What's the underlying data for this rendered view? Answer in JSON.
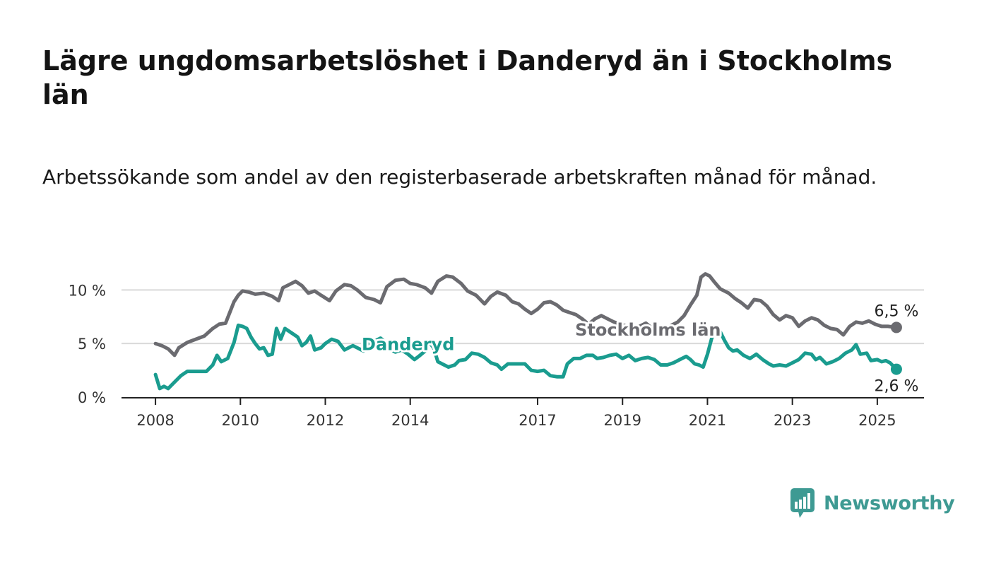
{
  "title": "Lägre ungdomsarbetslöshet i Danderyd än i Stockholms län",
  "subtitle": "Arbetssökande som andel av den registerbaserade arbetskraften månad för månad.",
  "brand": {
    "name": "Newsworthy",
    "color": "#3e9a93",
    "icon": "bar-chart-speech-bubble-icon"
  },
  "chart_data": {
    "type": "line",
    "ylim": [
      0,
      12
    ],
    "yticks": [
      0,
      5,
      10
    ],
    "ytick_labels": [
      "0 %",
      "5 %",
      "10 %"
    ],
    "xticks": [
      2008,
      2010,
      2012,
      2014,
      2017,
      2019,
      2021,
      2023,
      2025
    ],
    "xtick_labels": [
      "2008",
      "2010",
      "2012",
      "2014",
      "2017",
      "2019",
      "2021",
      "2023",
      "2025"
    ],
    "xlim": [
      2007.2,
      2026.1
    ],
    "grid": true,
    "series": [
      {
        "name": "Stockholms län",
        "color": "#6b6b70",
        "end_label": "6,5 %",
        "points": [
          [
            2008.0,
            5.0
          ],
          [
            2008.15,
            4.8
          ],
          [
            2008.3,
            4.5
          ],
          [
            2008.45,
            3.9
          ],
          [
            2008.55,
            4.6
          ],
          [
            2008.75,
            5.1
          ],
          [
            2008.95,
            5.4
          ],
          [
            2009.15,
            5.7
          ],
          [
            2009.35,
            6.4
          ],
          [
            2009.5,
            6.8
          ],
          [
            2009.65,
            6.9
          ],
          [
            2009.75,
            7.9
          ],
          [
            2009.85,
            8.9
          ],
          [
            2009.95,
            9.5
          ],
          [
            2010.05,
            9.9
          ],
          [
            2010.2,
            9.8
          ],
          [
            2010.35,
            9.6
          ],
          [
            2010.55,
            9.7
          ],
          [
            2010.75,
            9.4
          ],
          [
            2010.9,
            9.0
          ],
          [
            2011.0,
            10.2
          ],
          [
            2011.15,
            10.5
          ],
          [
            2011.3,
            10.8
          ],
          [
            2011.45,
            10.4
          ],
          [
            2011.6,
            9.7
          ],
          [
            2011.75,
            9.9
          ],
          [
            2011.9,
            9.5
          ],
          [
            2012.1,
            9.0
          ],
          [
            2012.25,
            9.9
          ],
          [
            2012.45,
            10.5
          ],
          [
            2012.6,
            10.4
          ],
          [
            2012.75,
            10.0
          ],
          [
            2012.95,
            9.3
          ],
          [
            2013.15,
            9.1
          ],
          [
            2013.3,
            8.8
          ],
          [
            2013.45,
            10.3
          ],
          [
            2013.65,
            10.9
          ],
          [
            2013.85,
            11.0
          ],
          [
            2014.0,
            10.6
          ],
          [
            2014.15,
            10.5
          ],
          [
            2014.35,
            10.2
          ],
          [
            2014.5,
            9.7
          ],
          [
            2014.65,
            10.8
          ],
          [
            2014.85,
            11.3
          ],
          [
            2015.0,
            11.2
          ],
          [
            2015.2,
            10.6
          ],
          [
            2015.35,
            9.9
          ],
          [
            2015.55,
            9.5
          ],
          [
            2015.75,
            8.7
          ],
          [
            2015.9,
            9.4
          ],
          [
            2016.05,
            9.8
          ],
          [
            2016.25,
            9.5
          ],
          [
            2016.4,
            8.9
          ],
          [
            2016.55,
            8.7
          ],
          [
            2016.7,
            8.2
          ],
          [
            2016.85,
            7.8
          ],
          [
            2017.0,
            8.2
          ],
          [
            2017.15,
            8.8
          ],
          [
            2017.3,
            8.9
          ],
          [
            2017.45,
            8.6
          ],
          [
            2017.6,
            8.1
          ],
          [
            2017.75,
            7.9
          ],
          [
            2017.9,
            7.7
          ],
          [
            2018.05,
            7.3
          ],
          [
            2018.2,
            6.8
          ],
          [
            2018.35,
            7.3
          ],
          [
            2018.5,
            7.6
          ],
          [
            2018.65,
            7.3
          ],
          [
            2018.8,
            7.0
          ],
          [
            2018.95,
            6.8
          ],
          [
            2019.1,
            6.6
          ],
          [
            2019.25,
            6.4
          ],
          [
            2019.4,
            6.6
          ],
          [
            2019.55,
            6.9
          ],
          [
            2019.7,
            6.4
          ],
          [
            2019.85,
            6.0
          ],
          [
            2020.0,
            6.2
          ],
          [
            2020.15,
            6.7
          ],
          [
            2020.3,
            7.0
          ],
          [
            2020.45,
            7.6
          ],
          [
            2020.6,
            8.6
          ],
          [
            2020.75,
            9.5
          ],
          [
            2020.85,
            11.2
          ],
          [
            2020.95,
            11.5
          ],
          [
            2021.05,
            11.3
          ],
          [
            2021.15,
            10.8
          ],
          [
            2021.3,
            10.1
          ],
          [
            2021.5,
            9.7
          ],
          [
            2021.65,
            9.2
          ],
          [
            2021.8,
            8.8
          ],
          [
            2021.95,
            8.3
          ],
          [
            2022.1,
            9.1
          ],
          [
            2022.25,
            9.0
          ],
          [
            2022.4,
            8.5
          ],
          [
            2022.55,
            7.7
          ],
          [
            2022.7,
            7.2
          ],
          [
            2022.85,
            7.6
          ],
          [
            2023.0,
            7.4
          ],
          [
            2023.15,
            6.6
          ],
          [
            2023.3,
            7.1
          ],
          [
            2023.45,
            7.4
          ],
          [
            2023.6,
            7.2
          ],
          [
            2023.75,
            6.7
          ],
          [
            2023.9,
            6.4
          ],
          [
            2024.05,
            6.3
          ],
          [
            2024.2,
            5.8
          ],
          [
            2024.35,
            6.6
          ],
          [
            2024.5,
            7.0
          ],
          [
            2024.65,
            6.9
          ],
          [
            2024.8,
            7.1
          ],
          [
            2024.95,
            6.8
          ],
          [
            2025.1,
            6.6
          ],
          [
            2025.25,
            6.6
          ],
          [
            2025.45,
            6.5
          ]
        ]
      },
      {
        "name": "Danderyd",
        "color": "#1a9c8f",
        "end_label": "2,6 %",
        "points": [
          [
            2008.0,
            2.1
          ],
          [
            2008.1,
            0.8
          ],
          [
            2008.2,
            1.0
          ],
          [
            2008.3,
            0.8
          ],
          [
            2008.45,
            1.4
          ],
          [
            2008.6,
            2.0
          ],
          [
            2008.75,
            2.4
          ],
          [
            2008.9,
            2.4
          ],
          [
            2009.05,
            2.4
          ],
          [
            2009.2,
            2.4
          ],
          [
            2009.35,
            3.0
          ],
          [
            2009.45,
            3.9
          ],
          [
            2009.55,
            3.3
          ],
          [
            2009.7,
            3.6
          ],
          [
            2009.85,
            5.1
          ],
          [
            2009.95,
            6.7
          ],
          [
            2010.05,
            6.6
          ],
          [
            2010.15,
            6.4
          ],
          [
            2010.25,
            5.6
          ],
          [
            2010.35,
            5.0
          ],
          [
            2010.45,
            4.5
          ],
          [
            2010.55,
            4.6
          ],
          [
            2010.65,
            3.9
          ],
          [
            2010.75,
            4.0
          ],
          [
            2010.85,
            6.4
          ],
          [
            2010.95,
            5.4
          ],
          [
            2011.05,
            6.4
          ],
          [
            2011.2,
            6.0
          ],
          [
            2011.35,
            5.6
          ],
          [
            2011.45,
            4.8
          ],
          [
            2011.55,
            5.1
          ],
          [
            2011.65,
            5.7
          ],
          [
            2011.75,
            4.4
          ],
          [
            2011.9,
            4.6
          ],
          [
            2012.0,
            5.0
          ],
          [
            2012.15,
            5.4
          ],
          [
            2012.3,
            5.2
          ],
          [
            2012.45,
            4.4
          ],
          [
            2012.55,
            4.6
          ],
          [
            2012.65,
            4.8
          ],
          [
            2012.75,
            4.6
          ],
          [
            2012.9,
            4.3
          ],
          [
            2013.0,
            5.0
          ],
          [
            2013.15,
            5.2
          ],
          [
            2013.3,
            5.5
          ],
          [
            2013.45,
            5.0
          ],
          [
            2013.55,
            4.4
          ],
          [
            2013.65,
            4.2
          ],
          [
            2013.8,
            4.4
          ],
          [
            2013.95,
            4.0
          ],
          [
            2014.1,
            3.5
          ],
          [
            2014.2,
            3.8
          ],
          [
            2014.35,
            4.3
          ],
          [
            2014.45,
            5.1
          ],
          [
            2014.55,
            4.6
          ],
          [
            2014.65,
            3.3
          ],
          [
            2014.75,
            3.1
          ],
          [
            2014.9,
            2.8
          ],
          [
            2015.05,
            3.0
          ],
          [
            2015.15,
            3.4
          ],
          [
            2015.3,
            3.5
          ],
          [
            2015.45,
            4.1
          ],
          [
            2015.6,
            4.0
          ],
          [
            2015.75,
            3.7
          ],
          [
            2015.9,
            3.2
          ],
          [
            2016.05,
            3.0
          ],
          [
            2016.15,
            2.6
          ],
          [
            2016.3,
            3.1
          ],
          [
            2016.5,
            3.1
          ],
          [
            2016.7,
            3.1
          ],
          [
            2016.85,
            2.5
          ],
          [
            2017.0,
            2.4
          ],
          [
            2017.15,
            2.5
          ],
          [
            2017.3,
            2.0
          ],
          [
            2017.45,
            1.9
          ],
          [
            2017.6,
            1.9
          ],
          [
            2017.7,
            3.1
          ],
          [
            2017.85,
            3.6
          ],
          [
            2018.0,
            3.6
          ],
          [
            2018.15,
            3.9
          ],
          [
            2018.3,
            3.9
          ],
          [
            2018.4,
            3.6
          ],
          [
            2018.55,
            3.7
          ],
          [
            2018.7,
            3.9
          ],
          [
            2018.85,
            4.0
          ],
          [
            2019.0,
            3.6
          ],
          [
            2019.15,
            3.9
          ],
          [
            2019.3,
            3.4
          ],
          [
            2019.45,
            3.6
          ],
          [
            2019.6,
            3.7
          ],
          [
            2019.75,
            3.5
          ],
          [
            2019.9,
            3.0
          ],
          [
            2020.05,
            3.0
          ],
          [
            2020.2,
            3.2
          ],
          [
            2020.35,
            3.5
          ],
          [
            2020.5,
            3.8
          ],
          [
            2020.6,
            3.5
          ],
          [
            2020.7,
            3.1
          ],
          [
            2020.8,
            3.0
          ],
          [
            2020.9,
            2.8
          ],
          [
            2021.0,
            4.0
          ],
          [
            2021.1,
            5.5
          ],
          [
            2021.2,
            6.3
          ],
          [
            2021.3,
            6.1
          ],
          [
            2021.4,
            5.3
          ],
          [
            2021.5,
            4.6
          ],
          [
            2021.6,
            4.3
          ],
          [
            2021.7,
            4.4
          ],
          [
            2021.85,
            3.9
          ],
          [
            2022.0,
            3.6
          ],
          [
            2022.15,
            4.0
          ],
          [
            2022.3,
            3.5
          ],
          [
            2022.45,
            3.1
          ],
          [
            2022.55,
            2.9
          ],
          [
            2022.7,
            3.0
          ],
          [
            2022.85,
            2.9
          ],
          [
            2023.0,
            3.2
          ],
          [
            2023.15,
            3.5
          ],
          [
            2023.3,
            4.1
          ],
          [
            2023.45,
            4.0
          ],
          [
            2023.55,
            3.5
          ],
          [
            2023.65,
            3.7
          ],
          [
            2023.8,
            3.1
          ],
          [
            2023.95,
            3.3
          ],
          [
            2024.1,
            3.6
          ],
          [
            2024.25,
            4.1
          ],
          [
            2024.4,
            4.4
          ],
          [
            2024.5,
            4.9
          ],
          [
            2024.6,
            4.0
          ],
          [
            2024.75,
            4.1
          ],
          [
            2024.85,
            3.4
          ],
          [
            2025.0,
            3.5
          ],
          [
            2025.1,
            3.3
          ],
          [
            2025.2,
            3.4
          ],
          [
            2025.3,
            3.2
          ],
          [
            2025.45,
            2.6
          ]
        ]
      }
    ]
  }
}
